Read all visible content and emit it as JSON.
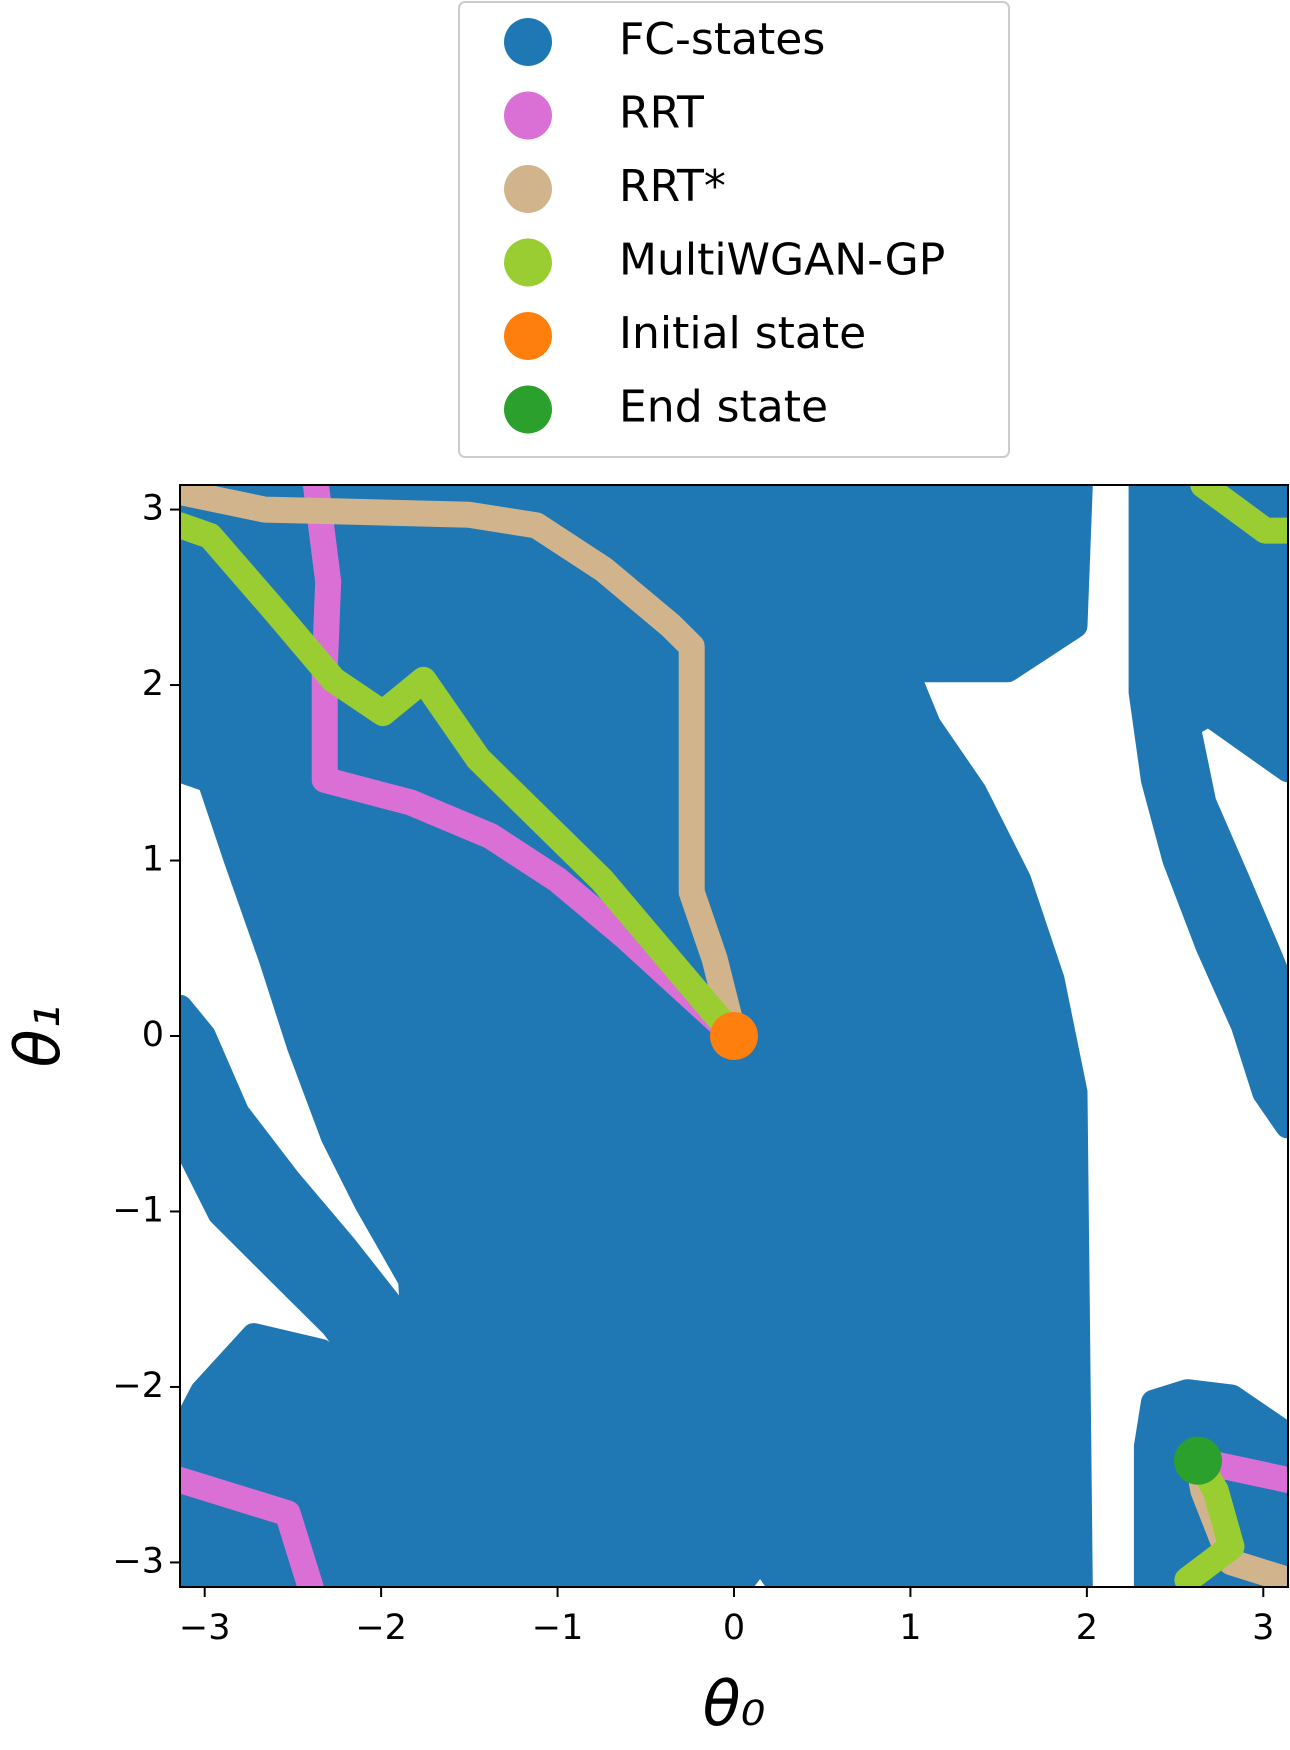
{
  "chart_data": {
    "type": "scatter",
    "xlabel": "θ₀",
    "ylabel": "θ₁",
    "xlim": [
      -3.14,
      3.14
    ],
    "ylim": [
      -3.14,
      3.14
    ],
    "xticks": [
      {
        "value": -3,
        "label": "−3"
      },
      {
        "value": -2,
        "label": "−2"
      },
      {
        "value": -1,
        "label": "−1"
      },
      0,
      1,
      2,
      3
    ],
    "yticks": [
      {
        "value": -3,
        "label": "−3"
      },
      {
        "value": -2,
        "label": "−2"
      },
      {
        "value": -1,
        "label": "−1"
      },
      0,
      1,
      2,
      3
    ],
    "legend": "upper center",
    "series": [
      {
        "name": "FC-states",
        "color": "#1f77b4",
        "regions": [
          {
            "x": [
              -3.14,
              1.96,
              1.93,
              1.55,
              0.97,
              1.1,
              1.36,
              1.61,
              1.8,
              1.93,
              1.96,
              0.27,
              0.15,
              0.02,
              -3.14,
              -3.14,
              -3.01,
              -2.72,
              -2.34,
              -2.02,
              -1.8,
              -1.83,
              -2.08,
              -2.27,
              -2.46,
              -2.62,
              -2.82,
              -2.97,
              -3.14
            ],
            "y": [
              3.14,
              3.14,
              2.34,
              2.09,
              2.09,
              1.77,
              1.39,
              0.89,
              0.32,
              -0.32,
              -3.14,
              -3.14,
              -2.97,
              -3.14,
              -3.14,
              -2.28,
              -2.03,
              -1.71,
              -1.8,
              -2.03,
              -1.93,
              -1.39,
              -0.95,
              -0.57,
              -0.06,
              0.44,
              1.01,
              1.46,
              1.52
            ]
          },
          {
            "x": [
              -3.14,
              -3.01,
              -2.82,
              -2.53,
              -2.21,
              -1.96,
              -1.83,
              -2.02,
              -2.27,
              -2.59,
              -2.91,
              -3.1,
              -3.14
            ],
            "y": [
              0.16,
              0,
              -0.44,
              -0.82,
              -1.2,
              -1.52,
              -1.9,
              -1.99,
              -1.65,
              -1.33,
              -1.01,
              -0.63,
              -0.38
            ]
          },
          {
            "x": [
              2.31,
              3.14,
              3.14,
              2.69,
              2.57,
              2.66,
              2.85,
              3.04,
              3.14,
              3.14,
              3.01,
              2.89,
              2.69,
              2.5,
              2.38,
              2.31
            ],
            "y": [
              3.14,
              3.14,
              1.52,
              1.84,
              1.77,
              1.33,
              0.89,
              0.44,
              0.19,
              -0.51,
              -0.32,
              0.06,
              0.51,
              1.01,
              1.46,
              1.96
            ]
          },
          {
            "x": [
              2.38,
              2.57,
              2.82,
              3.14,
              3.14,
              2.34,
              2.34
            ],
            "y": [
              -2.09,
              -2.03,
              -2.06,
              -2.28,
              -3.14,
              -3.14,
              -2.34
            ]
          }
        ]
      },
      {
        "name": "RRT",
        "color": "#da70d6",
        "x": [
          0,
          -0.62,
          -1.0,
          -1.38,
          -1.83,
          -2.32,
          -2.32,
          -2.3,
          -2.37,
          null,
          -2.4,
          -2.53,
          -3.14,
          null,
          3.14,
          2.63
        ],
        "y": [
          0,
          0.57,
          0.89,
          1.14,
          1.33,
          1.46,
          2.09,
          2.59,
          3.14,
          null,
          -3.14,
          -2.72,
          -2.53,
          null,
          -2.53,
          -2.42
        ]
      },
      {
        "name": "RRT*",
        "color": "#d2b48c",
        "x": [
          0,
          -0.11,
          -0.24,
          -0.24,
          -0.36,
          -0.74,
          -1.12,
          -1.5,
          -2.27,
          -2.66,
          -3.14,
          null,
          3.14,
          2.82,
          2.66,
          2.63
        ],
        "y": [
          0,
          0.44,
          0.82,
          2.22,
          2.34,
          2.66,
          2.91,
          2.97,
          2.99,
          3.0,
          3.1,
          null,
          -3.1,
          -3.0,
          -2.59,
          -2.42
        ]
      },
      {
        "name": "MultiWGAN-GP",
        "color": "#9acd32",
        "x": [
          0,
          -0.75,
          -1.45,
          -1.76,
          -1.99,
          -2.27,
          -2.59,
          -2.97,
          -3.14,
          null,
          3.14,
          3.01,
          2.66,
          null,
          2.57,
          2.82,
          2.73,
          2.63
        ],
        "y": [
          0,
          0.89,
          1.58,
          2.03,
          1.84,
          2.03,
          2.41,
          2.85,
          2.91,
          null,
          2.88,
          2.88,
          3.14,
          null,
          -3.1,
          -2.91,
          -2.59,
          -2.42
        ]
      },
      {
        "name": "Initial state",
        "color": "#ff7f0e",
        "x": [
          0
        ],
        "y": [
          0
        ]
      },
      {
        "name": "End state",
        "color": "#2ca02c",
        "x": [
          2.63
        ],
        "y": [
          -2.42
        ]
      }
    ]
  }
}
